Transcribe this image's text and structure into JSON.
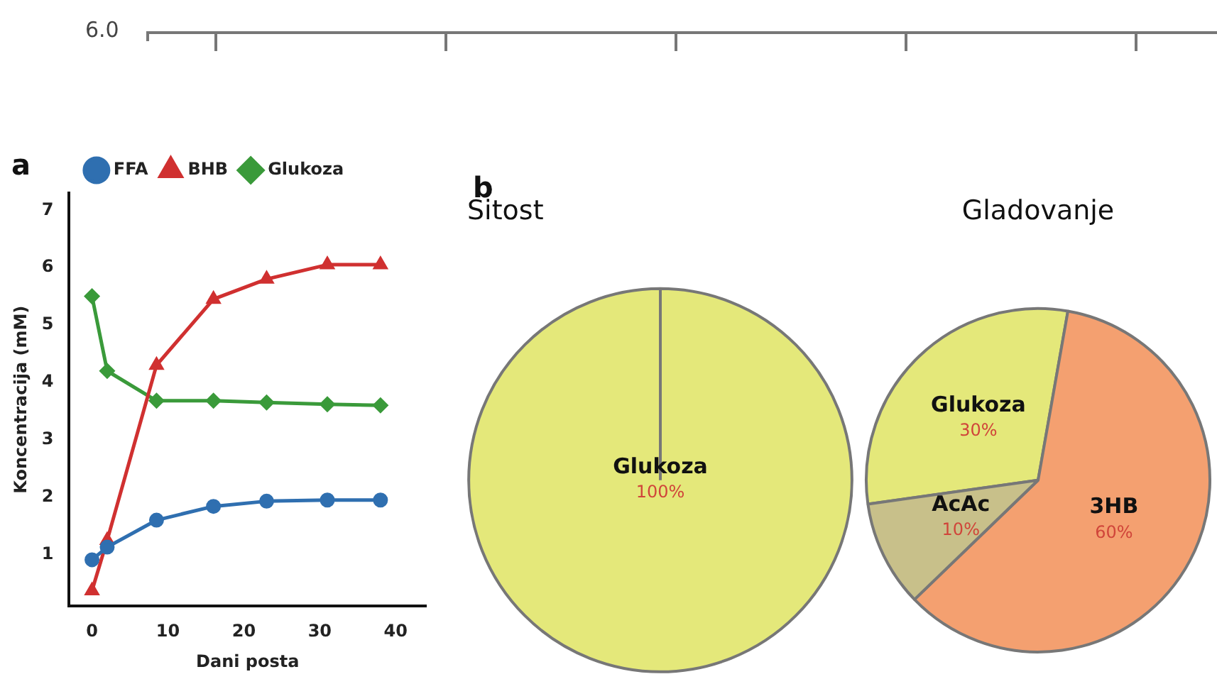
{
  "chart_data": [
    {
      "type": "other",
      "annotations": [
        "6.0"
      ]
    },
    {
      "type": "line",
      "annotations": [
        "a"
      ],
      "xlabel": "Dani posta",
      "ylabel": "Koncentracija (mM)",
      "xlim": [
        -3,
        44
      ],
      "xticks": [
        0,
        10,
        20,
        30,
        40
      ],
      "ylim": [
        0.1,
        7.3
      ],
      "yticks": [
        1,
        2,
        3,
        4,
        5,
        6,
        7
      ],
      "grid": false,
      "legend": "top",
      "line_style": "solid",
      "series": [
        {
          "name": "Glukoza",
          "color": "#3a9a3a",
          "marker": "diamond",
          "x": [
            0,
            2,
            8.5,
            16,
            23,
            31,
            38
          ],
          "values": [
            5.5,
            4.2,
            3.68,
            3.68,
            3.65,
            3.62,
            3.6
          ]
        },
        {
          "name": "BHB",
          "color": "#d03030",
          "marker": "triangle",
          "x": [
            0,
            2,
            8.5,
            16,
            23,
            31,
            38
          ],
          "values": [
            0.37,
            1.25,
            4.3,
            5.45,
            5.8,
            6.05,
            6.05
          ]
        },
        {
          "name": "FFA",
          "color": "#2f6fb0",
          "marker": "circle",
          "x": [
            0,
            2,
            8.5,
            16,
            23,
            31,
            38
          ],
          "values": [
            0.91,
            1.13,
            1.6,
            1.84,
            1.93,
            1.95,
            1.95
          ]
        }
      ]
    },
    {
      "type": "pie",
      "title": "Sitost",
      "annotations": [
        "b"
      ],
      "categories": [
        "Glukoza"
      ],
      "values": [
        100
      ],
      "value_labels": [
        "100%"
      ],
      "colors": [
        "#e4e87a"
      ]
    },
    {
      "type": "pie",
      "title": "Gladovanje",
      "categories": [
        "Glukoza",
        "3HB",
        "AcAc"
      ],
      "values": [
        30,
        60,
        10
      ],
      "value_labels": [
        "30%",
        "60%",
        "10%"
      ],
      "colors": [
        "#e4e87a",
        "#f4a070",
        "#c8c08a"
      ]
    }
  ]
}
